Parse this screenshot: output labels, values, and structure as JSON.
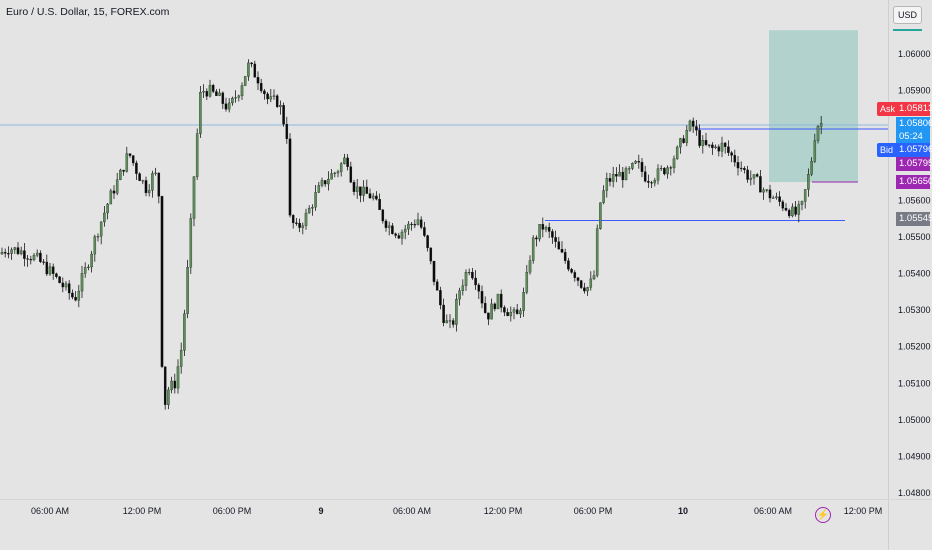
{
  "header": {
    "title": "Euro / U.S. Dollar, 15, FOREX.com"
  },
  "currency_button": {
    "label": "USD"
  },
  "price_tags": {
    "ask": {
      "label": "Ask",
      "value": "1.05813",
      "color": "#f23645"
    },
    "last": {
      "value": "1.05806",
      "countdown": "05:24",
      "color": "#2196f3"
    },
    "bid": {
      "label": "Bid",
      "value": "1.05796",
      "color": "#2962ff"
    },
    "level_1": {
      "value": "1.05795",
      "color": "#9c27b0"
    },
    "level_2": {
      "value": "1.05650",
      "color": "#9c27b0"
    },
    "level_3": {
      "value": "1.05545",
      "color": "#787b86"
    }
  },
  "indicator": {
    "icon": "lightning-icon"
  },
  "chart_data": {
    "type": "candlestick",
    "symbol": "EURUSD",
    "interval": "15",
    "ylim": [
      1.0475,
      1.0608
    ],
    "y_ticks": [
      "1.04800",
      "1.04900",
      "1.05000",
      "1.05100",
      "1.05200",
      "1.05300",
      "1.05400",
      "1.05500",
      "1.05600",
      "1.05700",
      "1.05800",
      "1.05900",
      "1.06000"
    ],
    "x_ticks": [
      "06:00 AM",
      "12:00 PM",
      "06:00 PM",
      "9",
      "06:00 AM",
      "12:00 PM",
      "06:00 PM",
      "10",
      "06:00 AM",
      "12:00 PM"
    ],
    "price_path": [
      [
        0,
        1.0545
      ],
      [
        12,
        1.0547
      ],
      [
        25,
        1.0546
      ],
      [
        40,
        1.0544
      ],
      [
        55,
        1.054
      ],
      [
        68,
        1.0536
      ],
      [
        78,
        1.0533
      ],
      [
        90,
        1.0542
      ],
      [
        100,
        1.0551
      ],
      [
        112,
        1.056
      ],
      [
        122,
        1.0566
      ],
      [
        132,
        1.0573
      ],
      [
        140,
        1.0568
      ],
      [
        150,
        1.0563
      ],
      [
        158,
        1.0568
      ],
      [
        163,
        1.056
      ],
      [
        166,
        1.05
      ],
      [
        170,
        1.0508
      ],
      [
        178,
        1.051
      ],
      [
        185,
        1.052
      ],
      [
        192,
        1.0545
      ],
      [
        198,
        1.057
      ],
      [
        204,
        1.059
      ],
      [
        212,
        1.059
      ],
      [
        222,
        1.0588
      ],
      [
        232,
        1.0585
      ],
      [
        242,
        1.059
      ],
      [
        252,
        1.0597
      ],
      [
        262,
        1.0593
      ],
      [
        272,
        1.0587
      ],
      [
        282,
        1.0587
      ],
      [
        290,
        1.0578
      ],
      [
        293,
        1.0555
      ],
      [
        300,
        1.0552
      ],
      [
        310,
        1.0556
      ],
      [
        320,
        1.0562
      ],
      [
        330,
        1.0566
      ],
      [
        340,
        1.0568
      ],
      [
        350,
        1.0572
      ],
      [
        356,
        1.0564
      ],
      [
        366,
        1.0562
      ],
      [
        376,
        1.0561
      ],
      [
        384,
        1.0556
      ],
      [
        392,
        1.0553
      ],
      [
        402,
        1.0551
      ],
      [
        412,
        1.0553
      ],
      [
        422,
        1.0555
      ],
      [
        432,
        1.0545
      ],
      [
        440,
        1.0535
      ],
      [
        448,
        1.0527
      ],
      [
        455,
        1.0525
      ],
      [
        462,
        1.0535
      ],
      [
        472,
        1.0542
      ],
      [
        480,
        1.0538
      ],
      [
        490,
        1.0528
      ],
      [
        500,
        1.0533
      ],
      [
        510,
        1.053
      ],
      [
        520,
        1.0528
      ],
      [
        528,
        1.0535
      ],
      [
        535,
        1.0548
      ],
      [
        545,
        1.0553
      ],
      [
        555,
        1.055
      ],
      [
        562,
        1.0546
      ],
      [
        570,
        1.0543
      ],
      [
        578,
        1.054
      ],
      [
        585,
        1.0537
      ],
      [
        592,
        1.0536
      ],
      [
        598,
        1.054
      ],
      [
        602,
        1.0558
      ],
      [
        610,
        1.0565
      ],
      [
        620,
        1.0567
      ],
      [
        630,
        1.0567
      ],
      [
        640,
        1.057
      ],
      [
        650,
        1.0566
      ],
      [
        660,
        1.0567
      ],
      [
        670,
        1.0569
      ],
      [
        680,
        1.0573
      ],
      [
        688,
        1.0578
      ],
      [
        695,
        1.0581
      ],
      [
        705,
        1.0575
      ],
      [
        715,
        1.0574
      ],
      [
        725,
        1.0575
      ],
      [
        735,
        1.0572
      ],
      [
        742,
        1.057
      ],
      [
        750,
        1.0567
      ],
      [
        760,
        1.0565
      ],
      [
        770,
        1.0562
      ],
      [
        780,
        1.056
      ],
      [
        790,
        1.0558
      ],
      [
        798,
        1.0556
      ],
      [
        805,
        1.0558
      ],
      [
        812,
        1.0567
      ],
      [
        816,
        1.0573
      ],
      [
        819,
        1.058
      ],
      [
        822,
        1.0581
      ]
    ],
    "horizontal_lines": [
      {
        "price": 1.05806,
        "x_start": 0,
        "x_end": 888,
        "color": "#90b8e0"
      },
      {
        "price": 1.05795,
        "x_start": 697,
        "x_end": 888,
        "color": "#3d5afe"
      },
      {
        "price": 1.0565,
        "x_start": 812,
        "x_end": 858,
        "color": "#9c27b0"
      },
      {
        "price": 1.05545,
        "x_start": 545,
        "x_end": 845,
        "color": "#3d5afe"
      }
    ],
    "range_box": {
      "x_start": 769,
      "x_end": 858,
      "upper": {
        "from": 1.0565,
        "to": 1.06065,
        "color": "#a8cfc9"
      },
      "lower": {
        "from": 1.05545,
        "to": 1.0565,
        "color": "#c6c6c6"
      }
    },
    "colors": {
      "up": "#5b8f57",
      "down": "#0a0a0a",
      "wick": "#1a1a1a"
    },
    "grid": false,
    "legend": "none"
  }
}
